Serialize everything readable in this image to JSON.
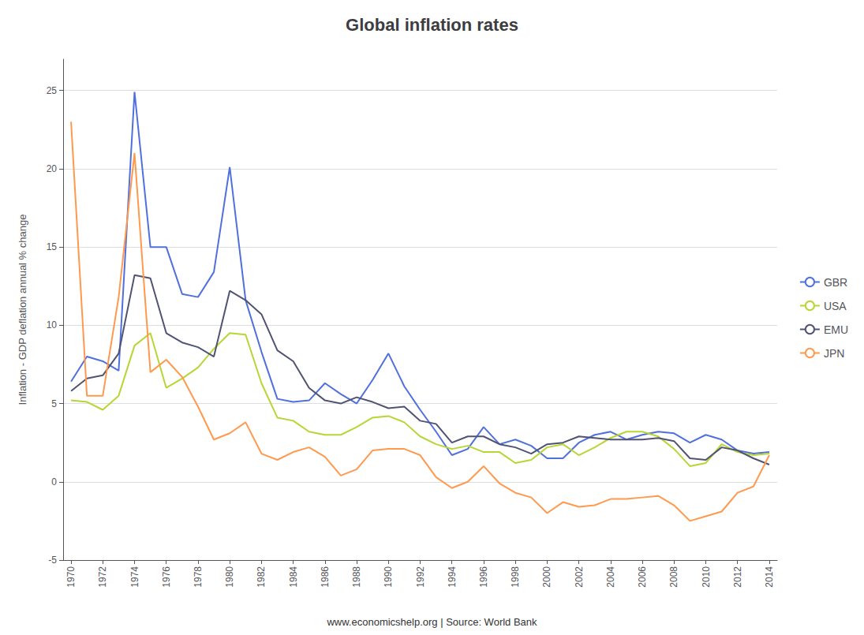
{
  "chart_data": {
    "type": "line",
    "title": "Global inflation rates",
    "y_label": "Inflation - GDP deflation annual % change",
    "annotations": [
      "www.economicshelp.org | Source: World Bank"
    ],
    "x": [
      1970,
      1971,
      1972,
      1973,
      1974,
      1975,
      1976,
      1977,
      1978,
      1979,
      1980,
      1981,
      1982,
      1983,
      1984,
      1985,
      1986,
      1987,
      1988,
      1989,
      1990,
      1991,
      1992,
      1993,
      1994,
      1995,
      1996,
      1997,
      1998,
      1999,
      2000,
      2001,
      2002,
      2003,
      2004,
      2005,
      2006,
      2007,
      2008,
      2009,
      2010,
      2011,
      2012,
      2013,
      2014
    ],
    "series": [
      {
        "name": "GBR",
        "values": [
          6.4,
          8.0,
          7.7,
          7.1,
          24.9,
          15.0,
          15.0,
          12.0,
          11.8,
          13.4,
          20.1,
          11.6,
          8.3,
          5.3,
          5.1,
          5.2,
          6.3,
          5.6,
          5.0,
          6.5,
          8.2,
          6.1,
          4.6,
          3.2,
          1.7,
          2.1,
          3.5,
          2.4,
          2.7,
          2.3,
          1.5,
          1.5,
          2.5,
          3.0,
          3.2,
          2.7,
          3.0,
          3.2,
          3.1,
          2.5,
          3.0,
          2.7,
          2.0,
          1.8,
          1.9
        ]
      },
      {
        "name": "USA",
        "values": [
          5.2,
          5.1,
          4.6,
          5.5,
          8.7,
          9.5,
          6.0,
          6.6,
          7.3,
          8.5,
          9.5,
          9.4,
          6.3,
          4.1,
          3.9,
          3.2,
          3.0,
          3.0,
          3.5,
          4.1,
          4.2,
          3.8,
          2.9,
          2.4,
          2.1,
          2.3,
          1.9,
          1.9,
          1.2,
          1.4,
          2.2,
          2.4,
          1.7,
          2.2,
          2.8,
          3.2,
          3.2,
          2.9,
          2.1,
          1.0,
          1.2,
          2.4,
          1.9,
          1.7,
          1.8
        ]
      },
      {
        "name": "EMU",
        "values": [
          5.8,
          6.6,
          6.8,
          8.2,
          13.2,
          13.0,
          9.5,
          8.9,
          8.6,
          8.0,
          12.2,
          11.6,
          10.7,
          8.4,
          7.7,
          6.0,
          5.2,
          5.0,
          5.4,
          5.1,
          4.7,
          4.8,
          3.9,
          3.7,
          2.5,
          2.9,
          2.9,
          2.4,
          2.2,
          1.8,
          2.4,
          2.5,
          2.9,
          2.8,
          2.7,
          2.7,
          2.7,
          2.8,
          2.6,
          1.5,
          1.4,
          2.2,
          2.0,
          1.5,
          1.1
        ]
      },
      {
        "name": "JPN",
        "values": [
          23.0,
          5.5,
          5.5,
          11.8,
          21.0,
          7.0,
          7.8,
          6.7,
          4.8,
          2.7,
          3.1,
          3.8,
          1.8,
          1.4,
          1.9,
          2.2,
          1.6,
          0.4,
          0.8,
          2.0,
          2.1,
          2.1,
          1.7,
          0.3,
          -0.4,
          0.0,
          1.0,
          -0.1,
          -0.7,
          -1.0,
          -2.0,
          -1.3,
          -1.6,
          -1.5,
          -1.1,
          -1.1,
          -1.0,
          -0.9,
          -1.5,
          -2.5,
          -2.2,
          -1.9,
          -0.7,
          -0.3,
          1.7
        ]
      }
    ],
    "xlim": [
      1969.5,
      2014.5
    ],
    "xticks": [
      1970,
      1972,
      1974,
      1976,
      1978,
      1980,
      1982,
      1984,
      1986,
      1988,
      1990,
      1992,
      1994,
      1996,
      1998,
      2000,
      2002,
      2004,
      2006,
      2008,
      2010,
      2012,
      2014
    ],
    "ylim": [
      -5,
      27
    ],
    "yticks": [
      -5,
      0,
      5,
      10,
      15,
      20,
      25
    ],
    "grid": true,
    "legend": "right"
  }
}
